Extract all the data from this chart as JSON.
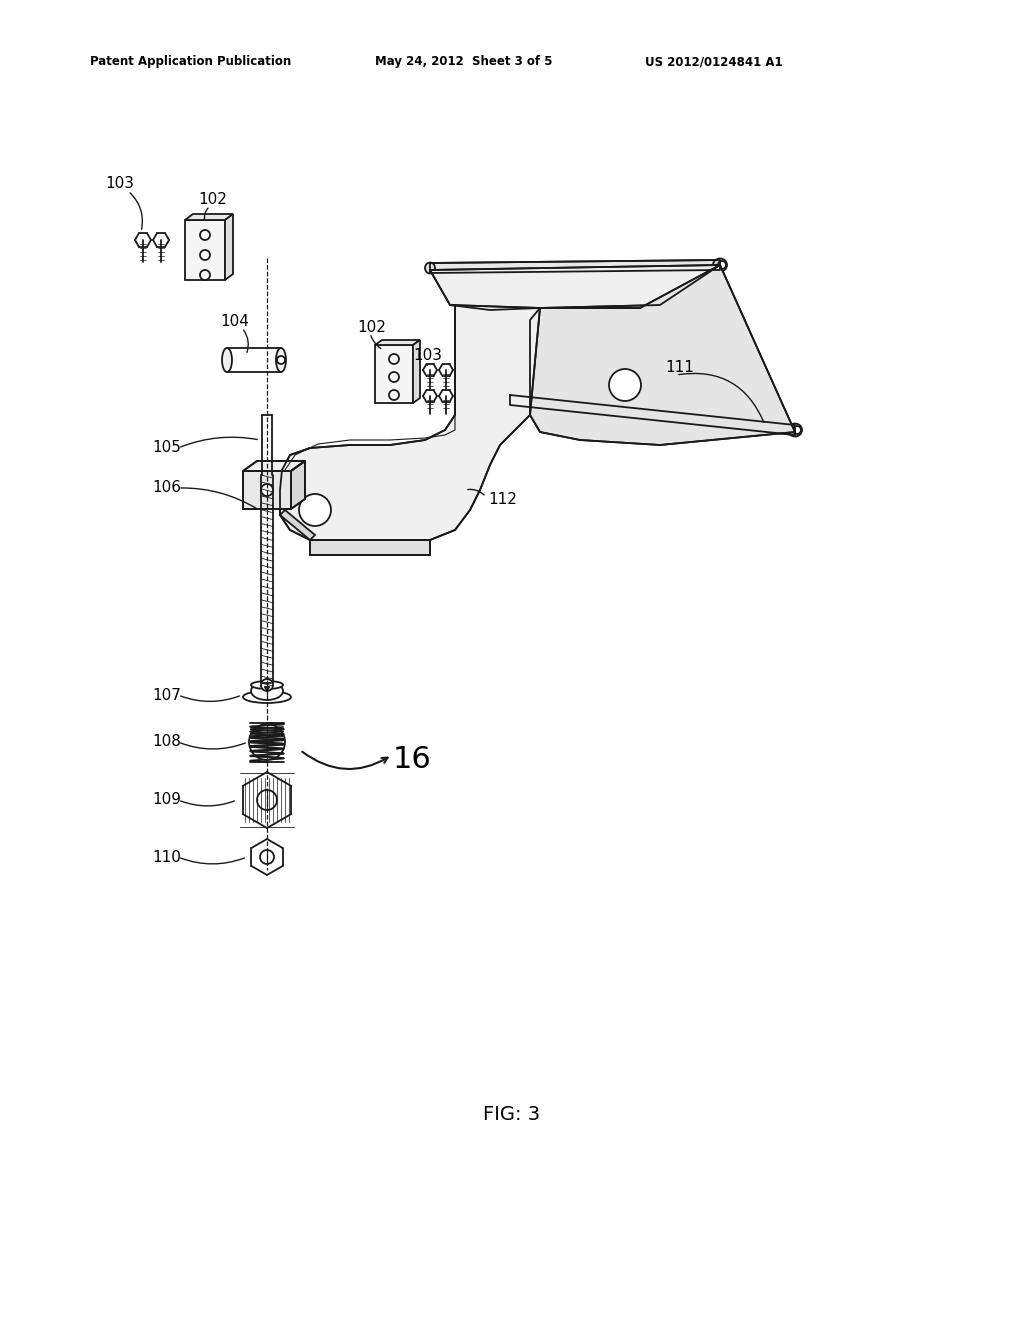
{
  "header_left": "Patent Application Publication",
  "header_mid": "May 24, 2012  Sheet 3 of 5",
  "header_right": "US 2012/0124841 A1",
  "figure_label": "FIG: 3",
  "bg_color": "#ffffff",
  "line_color": "#1a1a1a",
  "lw": 1.3
}
